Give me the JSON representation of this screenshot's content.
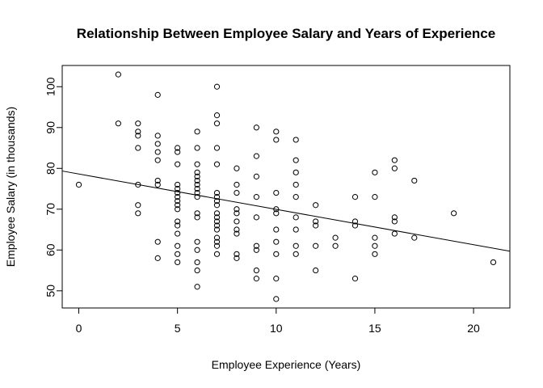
{
  "chart_data": {
    "type": "scatter",
    "title": "Relationship Between Employee Salary and Years of Experience",
    "xlabel": "Employee Experience (Years)",
    "ylabel": "Employee Salary (in thousands)",
    "xlim": [
      -0.84,
      21.84
    ],
    "ylim": [
      45.8,
      105.2
    ],
    "xticks": [
      0,
      5,
      10,
      15,
      20
    ],
    "yticks": [
      50,
      60,
      70,
      80,
      90,
      100
    ],
    "grid": false,
    "legend": "none",
    "regression_line": {
      "from": [
        -0.84,
        79.35
      ],
      "to": [
        21.84,
        59.7
      ]
    },
    "points": [
      [
        0,
        76
      ],
      [
        2,
        103
      ],
      [
        2,
        91
      ],
      [
        3,
        91
      ],
      [
        3,
        89
      ],
      [
        3,
        88
      ],
      [
        3,
        85
      ],
      [
        3,
        76
      ],
      [
        3,
        71
      ],
      [
        3,
        69
      ],
      [
        4,
        98
      ],
      [
        4,
        88
      ],
      [
        4,
        86
      ],
      [
        4,
        84
      ],
      [
        4,
        82
      ],
      [
        4,
        77
      ],
      [
        4,
        76
      ],
      [
        4,
        62
      ],
      [
        4,
        58
      ],
      [
        5,
        85
      ],
      [
        5,
        84
      ],
      [
        5,
        81
      ],
      [
        5,
        76
      ],
      [
        5,
        75
      ],
      [
        5,
        74
      ],
      [
        5,
        73
      ],
      [
        5,
        72
      ],
      [
        5,
        71
      ],
      [
        5,
        70
      ],
      [
        5,
        67
      ],
      [
        5,
        66
      ],
      [
        5,
        64
      ],
      [
        5,
        61
      ],
      [
        5,
        59
      ],
      [
        5,
        57
      ],
      [
        6,
        89
      ],
      [
        6,
        85
      ],
      [
        6,
        81
      ],
      [
        6,
        79
      ],
      [
        6,
        78
      ],
      [
        6,
        77
      ],
      [
        6,
        76
      ],
      [
        6,
        75
      ],
      [
        6,
        74
      ],
      [
        6,
        73
      ],
      [
        6,
        69
      ],
      [
        6,
        68
      ],
      [
        6,
        62
      ],
      [
        6,
        60
      ],
      [
        6,
        57
      ],
      [
        6,
        55
      ],
      [
        6,
        51
      ],
      [
        7,
        100
      ],
      [
        7,
        93
      ],
      [
        7,
        91
      ],
      [
        7,
        85
      ],
      [
        7,
        81
      ],
      [
        7,
        74
      ],
      [
        7,
        73
      ],
      [
        7,
        72
      ],
      [
        7,
        71
      ],
      [
        7,
        69
      ],
      [
        7,
        68
      ],
      [
        7,
        67
      ],
      [
        7,
        66
      ],
      [
        7,
        65
      ],
      [
        7,
        63
      ],
      [
        7,
        62
      ],
      [
        7,
        61
      ],
      [
        7,
        59
      ],
      [
        8,
        80
      ],
      [
        8,
        76
      ],
      [
        8,
        74
      ],
      [
        8,
        70
      ],
      [
        8,
        69
      ],
      [
        8,
        67
      ],
      [
        8,
        65
      ],
      [
        8,
        64
      ],
      [
        8,
        59
      ],
      [
        8,
        58
      ],
      [
        9,
        90
      ],
      [
        9,
        83
      ],
      [
        9,
        78
      ],
      [
        9,
        73
      ],
      [
        9,
        68
      ],
      [
        9,
        61
      ],
      [
        9,
        60
      ],
      [
        9,
        55
      ],
      [
        9,
        53
      ],
      [
        10,
        89
      ],
      [
        10,
        87
      ],
      [
        10,
        74
      ],
      [
        10,
        70
      ],
      [
        10,
        69
      ],
      [
        10,
        65
      ],
      [
        10,
        62
      ],
      [
        10,
        59
      ],
      [
        10,
        53
      ],
      [
        10,
        48
      ],
      [
        11,
        87
      ],
      [
        11,
        82
      ],
      [
        11,
        79
      ],
      [
        11,
        76
      ],
      [
        11,
        73
      ],
      [
        11,
        68
      ],
      [
        11,
        65
      ],
      [
        11,
        61
      ],
      [
        11,
        59
      ],
      [
        12,
        71
      ],
      [
        12,
        67
      ],
      [
        12,
        66
      ],
      [
        12,
        61
      ],
      [
        12,
        55
      ],
      [
        13,
        63
      ],
      [
        13,
        61
      ],
      [
        14,
        73
      ],
      [
        14,
        67
      ],
      [
        14,
        66
      ],
      [
        14,
        53
      ],
      [
        15,
        79
      ],
      [
        15,
        73
      ],
      [
        15,
        63
      ],
      [
        15,
        61
      ],
      [
        15,
        59
      ],
      [
        16,
        82
      ],
      [
        16,
        80
      ],
      [
        16,
        68
      ],
      [
        16,
        67
      ],
      [
        16,
        64
      ],
      [
        17,
        77
      ],
      [
        17,
        63
      ],
      [
        19,
        69
      ],
      [
        21,
        57
      ]
    ]
  }
}
